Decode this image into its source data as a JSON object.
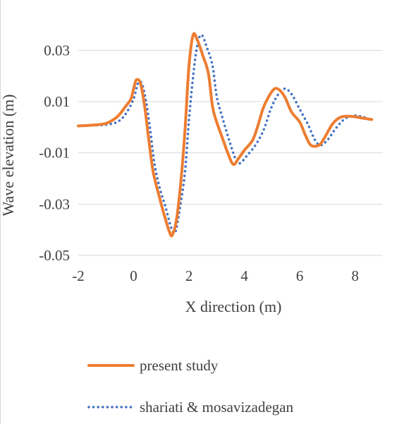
{
  "chart_data": {
    "type": "line",
    "title": "",
    "xlabel": "X direction (m)",
    "ylabel": "Wave elevation (m)",
    "xlim": [
      -2,
      9
    ],
    "ylim": [
      -0.05,
      0.04
    ],
    "x_ticks": [
      -2,
      0,
      2,
      4,
      6,
      8
    ],
    "y_ticks": [
      0.03,
      0.01,
      -0.01,
      -0.03,
      -0.05
    ],
    "x_tick_labels": [
      "-2",
      "0",
      "2",
      "4",
      "6",
      "8"
    ],
    "y_tick_labels": [
      "0.03",
      "0.01",
      "-0.01",
      "-0.03",
      "-0.05"
    ],
    "grid": "horizontal",
    "legend_position": "bottom",
    "series": [
      {
        "name": "present study",
        "color": "#ed7d31",
        "style": "solid",
        "points": [
          [
            -2.0,
            0.0005
          ],
          [
            -1.5,
            0.0008
          ],
          [
            -1.0,
            0.0015
          ],
          [
            -0.6,
            0.004
          ],
          [
            -0.3,
            0.008
          ],
          [
            -0.1,
            0.011
          ],
          [
            0.0,
            0.015
          ],
          [
            0.1,
            0.0185
          ],
          [
            0.25,
            0.017
          ],
          [
            0.4,
            0.008
          ],
          [
            0.55,
            -0.005
          ],
          [
            0.7,
            -0.017
          ],
          [
            0.9,
            -0.026
          ],
          [
            1.1,
            -0.034
          ],
          [
            1.3,
            -0.041
          ],
          [
            1.4,
            -0.042
          ],
          [
            1.55,
            -0.036
          ],
          [
            1.7,
            -0.022
          ],
          [
            1.85,
            -0.002
          ],
          [
            2.0,
            0.024
          ],
          [
            2.15,
            0.036
          ],
          [
            2.3,
            0.034
          ],
          [
            2.5,
            0.028
          ],
          [
            2.7,
            0.021
          ],
          [
            2.85,
            0.008
          ],
          [
            3.0,
            0.002
          ],
          [
            3.2,
            -0.004
          ],
          [
            3.4,
            -0.01
          ],
          [
            3.6,
            -0.0145
          ],
          [
            3.8,
            -0.012
          ],
          [
            4.0,
            -0.009
          ],
          [
            4.3,
            -0.005
          ],
          [
            4.5,
            0.001
          ],
          [
            4.7,
            0.008
          ],
          [
            5.0,
            0.014
          ],
          [
            5.2,
            0.015
          ],
          [
            5.45,
            0.012
          ],
          [
            5.7,
            0.006
          ],
          [
            6.0,
            0.002
          ],
          [
            6.2,
            -0.003
          ],
          [
            6.4,
            -0.007
          ],
          [
            6.7,
            -0.007
          ],
          [
            6.9,
            -0.004
          ],
          [
            7.2,
            0.0015
          ],
          [
            7.5,
            0.004
          ],
          [
            7.9,
            0.0042
          ],
          [
            8.3,
            0.0035
          ],
          [
            8.6,
            0.003
          ]
        ]
      },
      {
        "name": "shariati & mosavizadegan",
        "color": "#4472c4",
        "style": "dotted",
        "points": [
          [
            -2.0,
            0.0005
          ],
          [
            -1.5,
            0.0007
          ],
          [
            -1.0,
            0.001
          ],
          [
            -0.6,
            0.002
          ],
          [
            -0.3,
            0.005
          ],
          [
            0.0,
            0.011
          ],
          [
            0.15,
            0.017
          ],
          [
            0.3,
            0.017
          ],
          [
            0.45,
            0.01
          ],
          [
            0.6,
            -0.001
          ],
          [
            0.75,
            -0.014
          ],
          [
            0.95,
            -0.024
          ],
          [
            1.15,
            -0.031
          ],
          [
            1.35,
            -0.039
          ],
          [
            1.5,
            -0.041
          ],
          [
            1.65,
            -0.033
          ],
          [
            1.85,
            -0.018
          ],
          [
            2.0,
            0.003
          ],
          [
            2.15,
            0.02
          ],
          [
            2.3,
            0.032
          ],
          [
            2.45,
            0.036
          ],
          [
            2.65,
            0.031
          ],
          [
            2.85,
            0.024
          ],
          [
            3.0,
            0.012
          ],
          [
            3.2,
            0.004
          ],
          [
            3.45,
            -0.005
          ],
          [
            3.7,
            -0.013
          ],
          [
            3.85,
            -0.014
          ],
          [
            4.1,
            -0.011
          ],
          [
            4.4,
            -0.007
          ],
          [
            4.7,
            -0.001
          ],
          [
            4.95,
            0.007
          ],
          [
            5.2,
            0.0125
          ],
          [
            5.45,
            0.015
          ],
          [
            5.7,
            0.013
          ],
          [
            6.0,
            0.007
          ],
          [
            6.3,
            0.001
          ],
          [
            6.55,
            -0.005
          ],
          [
            6.75,
            -0.007
          ],
          [
            7.0,
            -0.005
          ],
          [
            7.3,
            -0.0005
          ],
          [
            7.6,
            0.003
          ],
          [
            7.9,
            0.0045
          ],
          [
            8.3,
            0.004
          ],
          [
            8.6,
            0.0025
          ]
        ]
      }
    ]
  }
}
